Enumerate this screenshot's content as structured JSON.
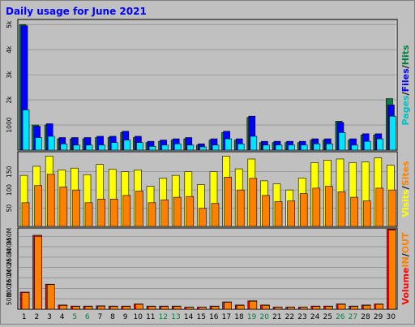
{
  "title": "Daily usage for June 2021",
  "colors": {
    "background": "#c0c0c0",
    "panel": "#c0c0c0",
    "title": "#0000ff",
    "pages": "#00c0c0",
    "pages_bar": "#00e5ff",
    "files": "#0000ff",
    "hits": "#008040",
    "visits": "#ffff00",
    "sites": "#ff8000",
    "volume_in": "#ff8000",
    "volume_out": "#ff8000",
    "volume_total": "#ff0000",
    "legend_in": "#ff8000",
    "legend_out": "#ff8000",
    "day_weekday": "#000000",
    "day_weekend": "#008040"
  },
  "right_legends": {
    "top": [
      "Pages",
      "/",
      "Files",
      "/",
      "Hits"
    ],
    "middle": [
      "Visits",
      "/",
      "Sites"
    ],
    "bottom": [
      "Volume",
      "IN",
      "/",
      "OUT"
    ]
  },
  "chart_data": [
    {
      "type": "bar",
      "title": "Daily usage for June 2021",
      "categories": [
        "1",
        "2",
        "3",
        "4",
        "5",
        "6",
        "7",
        "8",
        "9",
        "10",
        "11",
        "12",
        "13",
        "14",
        "15",
        "16",
        "17",
        "18",
        "19",
        "20",
        "21",
        "22",
        "23",
        "24",
        "25",
        "26",
        "27",
        "28",
        "29",
        "30"
      ],
      "weekend_days": [
        "5",
        "6",
        "12",
        "13",
        "19",
        "20",
        "26",
        "27"
      ],
      "ytick_labels": [
        "1000",
        "2k",
        "3k",
        "4k",
        "5k"
      ],
      "ylim": [
        0,
        5200
      ],
      "series": [
        {
          "name": "Hits",
          "values": [
            5000,
            1000,
            1000,
            450,
            450,
            450,
            500,
            500,
            700,
            500,
            300,
            350,
            400,
            450,
            200,
            400,
            700,
            400,
            1300,
            300,
            300,
            300,
            300,
            400,
            400,
            1150,
            400,
            600,
            600,
            2050
          ]
        },
        {
          "name": "Files",
          "values": [
            4950,
            950,
            1050,
            500,
            500,
            500,
            550,
            550,
            750,
            550,
            350,
            400,
            450,
            500,
            250,
            450,
            750,
            450,
            1350,
            350,
            350,
            350,
            350,
            450,
            450,
            1100,
            450,
            650,
            650,
            1800
          ]
        },
        {
          "name": "Pages",
          "values": [
            1600,
            500,
            550,
            250,
            200,
            200,
            200,
            300,
            400,
            300,
            150,
            200,
            250,
            200,
            130,
            200,
            450,
            250,
            550,
            200,
            200,
            200,
            200,
            250,
            250,
            700,
            200,
            350,
            450,
            1350
          ]
        }
      ]
    },
    {
      "type": "bar",
      "categories": [
        "1",
        "2",
        "3",
        "4",
        "5",
        "6",
        "7",
        "8",
        "9",
        "10",
        "11",
        "12",
        "13",
        "14",
        "15",
        "16",
        "17",
        "18",
        "19",
        "20",
        "21",
        "22",
        "23",
        "24",
        "25",
        "26",
        "27",
        "28",
        "29",
        "30"
      ],
      "ytick_labels": [
        "50",
        "100",
        "150"
      ],
      "ylim": [
        0,
        205
      ],
      "series": [
        {
          "name": "Visits",
          "values": [
            140,
            165,
            193,
            155,
            160,
            142,
            170,
            157,
            150,
            155,
            110,
            132,
            140,
            150,
            115,
            150,
            193,
            158,
            185,
            125,
            117,
            100,
            133,
            175,
            182,
            185,
            175,
            177,
            188,
            168
          ]
        },
        {
          "name": "Sites",
          "values": [
            65,
            112,
            143,
            108,
            100,
            65,
            75,
            75,
            85,
            97,
            65,
            73,
            80,
            82,
            50,
            63,
            135,
            100,
            132,
            85,
            68,
            70,
            90,
            105,
            110,
            95,
            80,
            70,
            105,
            100
          ]
        }
      ]
    },
    {
      "type": "bar",
      "categories": [
        "1",
        "2",
        "3",
        "4",
        "5",
        "6",
        "7",
        "8",
        "9",
        "10",
        "11",
        "12",
        "13",
        "14",
        "15",
        "16",
        "17",
        "18",
        "19",
        "20",
        "21",
        "22",
        "23",
        "24",
        "25",
        "26",
        "27",
        "28",
        "29",
        "30"
      ],
      "ytick_labels": [
        "50M",
        "100M",
        "150M",
        "200M",
        "250M",
        "300M",
        "350M"
      ],
      "ylim": [
        0,
        390
      ],
      "series": [
        {
          "name": "Volume",
          "values": [
            82,
            355,
            120,
            20,
            15,
            15,
            16,
            15,
            15,
            25,
            15,
            15,
            15,
            10,
            10,
            15,
            35,
            20,
            40,
            20,
            10,
            10,
            10,
            15,
            15,
            25,
            15,
            20,
            25,
            385
          ]
        },
        {
          "name": "OUT",
          "values": [
            80,
            350,
            118,
            18,
            13,
            13,
            14,
            13,
            13,
            23,
            13,
            13,
            13,
            9,
            9,
            13,
            33,
            18,
            38,
            18,
            9,
            9,
            9,
            13,
            13,
            23,
            13,
            18,
            23,
            380
          ]
        }
      ]
    }
  ]
}
